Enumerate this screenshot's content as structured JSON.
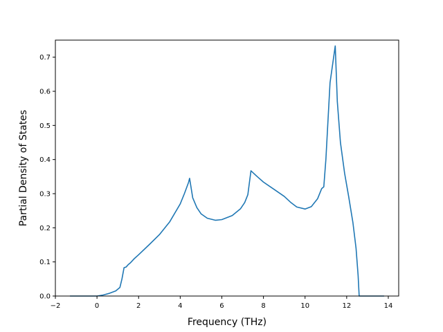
{
  "chart_data": {
    "type": "line",
    "title": "",
    "xlabel": "Frequency (THz)",
    "ylabel": "Partial Density of States",
    "xlim": [
      -2.0,
      14.5
    ],
    "ylim": [
      0.0,
      0.75
    ],
    "xticks": [
      -2,
      0,
      2,
      4,
      6,
      8,
      10,
      12,
      14
    ],
    "xtick_labels": [
      "−2",
      "0",
      "2",
      "4",
      "6",
      "8",
      "10",
      "12",
      "14"
    ],
    "yticks": [
      0.0,
      0.1,
      0.2,
      0.3,
      0.4,
      0.5,
      0.6,
      0.7
    ],
    "ytick_labels": [
      "0.0",
      "0.1",
      "0.2",
      "0.3",
      "0.4",
      "0.5",
      "0.6",
      "0.7"
    ],
    "grid": false,
    "legend": "none",
    "line_color": "#1f77b4",
    "series": [
      {
        "x": [
          -1.3,
          -0.5,
          0.0,
          0.3,
          0.6,
          0.9,
          1.1,
          1.2,
          1.3,
          1.4,
          1.5,
          1.6,
          1.8,
          2.0,
          2.5,
          3.0,
          3.5,
          4.0,
          4.2,
          4.4,
          4.45,
          4.6,
          4.8,
          5.0,
          5.3,
          5.7,
          6.0,
          6.5,
          6.9,
          7.1,
          7.25,
          7.32,
          7.4,
          7.7,
          8.0,
          8.5,
          9.0,
          9.3,
          9.6,
          10.0,
          10.3,
          10.6,
          10.8,
          10.9,
          11.0,
          11.2,
          11.45,
          11.55,
          11.7,
          11.9,
          12.1,
          12.3,
          12.45,
          12.55,
          12.6,
          13.0,
          13.8
        ],
        "y": [
          0.0,
          0.0,
          0.0,
          0.003,
          0.008,
          0.015,
          0.025,
          0.05,
          0.083,
          0.085,
          0.092,
          0.097,
          0.11,
          0.121,
          0.15,
          0.18,
          0.218,
          0.27,
          0.3,
          0.333,
          0.345,
          0.288,
          0.259,
          0.241,
          0.228,
          0.222,
          0.224,
          0.236,
          0.256,
          0.274,
          0.297,
          0.33,
          0.367,
          0.35,
          0.334,
          0.313,
          0.292,
          0.275,
          0.261,
          0.255,
          0.262,
          0.285,
          0.315,
          0.32,
          0.4,
          0.625,
          0.733,
          0.57,
          0.45,
          0.36,
          0.29,
          0.215,
          0.14,
          0.06,
          0.0,
          0.0,
          0.0
        ]
      }
    ]
  }
}
